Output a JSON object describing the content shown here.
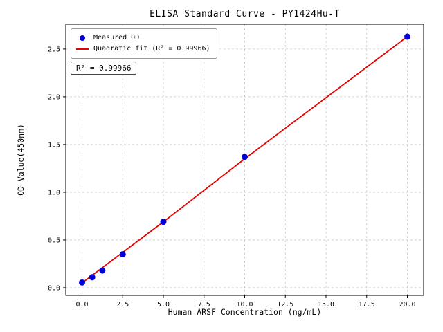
{
  "figure": {
    "title": "ELISA Standard Curve - PY1424Hu-T",
    "xlabel": "Human ARSF Concentration (ng/mL)",
    "ylabel": "OD Value(450nm)",
    "annotation": "R² = 0.99966"
  },
  "legend": {
    "position": "upper left",
    "items": [
      {
        "label": "Measured OD",
        "marker": "dot",
        "color": "#0000dd"
      },
      {
        "label": "Quadratic fit (R² = 0.99966)",
        "marker": "line",
        "color": "#e60000"
      }
    ]
  },
  "chart_data": {
    "type": "scatter",
    "title": "ELISA Standard Curve - PY1424Hu-T",
    "xlabel": "Human ARSF Concentration (ng/mL)",
    "ylabel": "OD Value(450nm)",
    "xlim": [
      -1,
      21
    ],
    "ylim": [
      -0.08,
      2.76
    ],
    "x_tick_values": [
      0,
      2.5,
      5,
      7.5,
      10,
      12.5,
      15,
      17.5,
      20
    ],
    "x_tick_labels": [
      "0.0",
      "2.5",
      "5.0",
      "7.5",
      "10.0",
      "12.5",
      "15.0",
      "17.5",
      "20.0"
    ],
    "y_tick_values": [
      0,
      0.5,
      1,
      1.5,
      2,
      2.5
    ],
    "y_tick_labels": [
      "0.0",
      "0.5",
      "1.0",
      "1.5",
      "2.0",
      "2.5"
    ],
    "grid": true,
    "r_squared": 0.99966,
    "series": [
      {
        "name": "Measured OD",
        "type": "scatter",
        "color": "#0000dd",
        "x": [
          0,
          0.625,
          1.25,
          2.5,
          5,
          10,
          20
        ],
        "y": [
          0.055,
          0.11,
          0.18,
          0.35,
          0.69,
          1.37,
          2.63
        ]
      },
      {
        "name": "Quadratic fit",
        "type": "line",
        "color": "#e60000",
        "x": [
          0,
          2.5,
          5,
          7.5,
          10,
          12.5,
          15,
          17.5,
          20
        ],
        "y": [
          0.05,
          0.37,
          0.69,
          1.02,
          1.35,
          1.67,
          1.99,
          2.31,
          2.63
        ]
      }
    ]
  }
}
